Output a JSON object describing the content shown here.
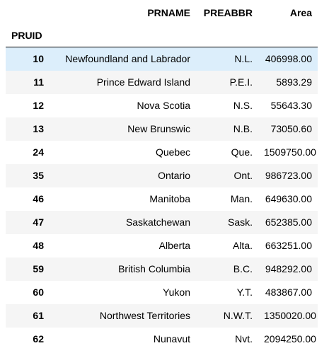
{
  "table": {
    "columns": {
      "prname": "PRNAME",
      "preabbr": "PREABBR",
      "area": "Area"
    },
    "index_name": "PRUID",
    "rows": [
      {
        "pruid": "10",
        "prname": "Newfoundland and Labrador",
        "preabbr": "N.L.",
        "area": "406998.00"
      },
      {
        "pruid": "11",
        "prname": "Prince Edward Island",
        "preabbr": "P.E.I.",
        "area": "5893.29"
      },
      {
        "pruid": "12",
        "prname": "Nova Scotia",
        "preabbr": "N.S.",
        "area": "55643.30"
      },
      {
        "pruid": "13",
        "prname": "New Brunswic",
        "preabbr": "N.B.",
        "area": "73050.60"
      },
      {
        "pruid": "24",
        "prname": "Quebec",
        "preabbr": "Que.",
        "area": "1509750.00"
      },
      {
        "pruid": "35",
        "prname": "Ontario",
        "preabbr": "Ont.",
        "area": "986723.00"
      },
      {
        "pruid": "46",
        "prname": "Manitoba",
        "preabbr": "Man.",
        "area": "649630.00"
      },
      {
        "pruid": "47",
        "prname": "Saskatchewan",
        "preabbr": "Sask.",
        "area": "652385.00"
      },
      {
        "pruid": "48",
        "prname": "Alberta",
        "preabbr": "Alta.",
        "area": "663251.00"
      },
      {
        "pruid": "59",
        "prname": "British Columbia",
        "preabbr": "B.C.",
        "area": "948292.00"
      },
      {
        "pruid": "60",
        "prname": "Yukon",
        "preabbr": "Y.T.",
        "area": "483867.00"
      },
      {
        "pruid": "61",
        "prname": "Northwest Territories",
        "preabbr": "N.W.T.",
        "area": "1350020.00"
      },
      {
        "pruid": "62",
        "prname": "Nunavut",
        "preabbr": "Nvt.",
        "area": "2094250.00"
      }
    ],
    "hovered_row_index": 0,
    "colors": {
      "hover_row": "#dceefb",
      "striped_row": "#f5f5f5",
      "header_rule": "#000000"
    }
  }
}
